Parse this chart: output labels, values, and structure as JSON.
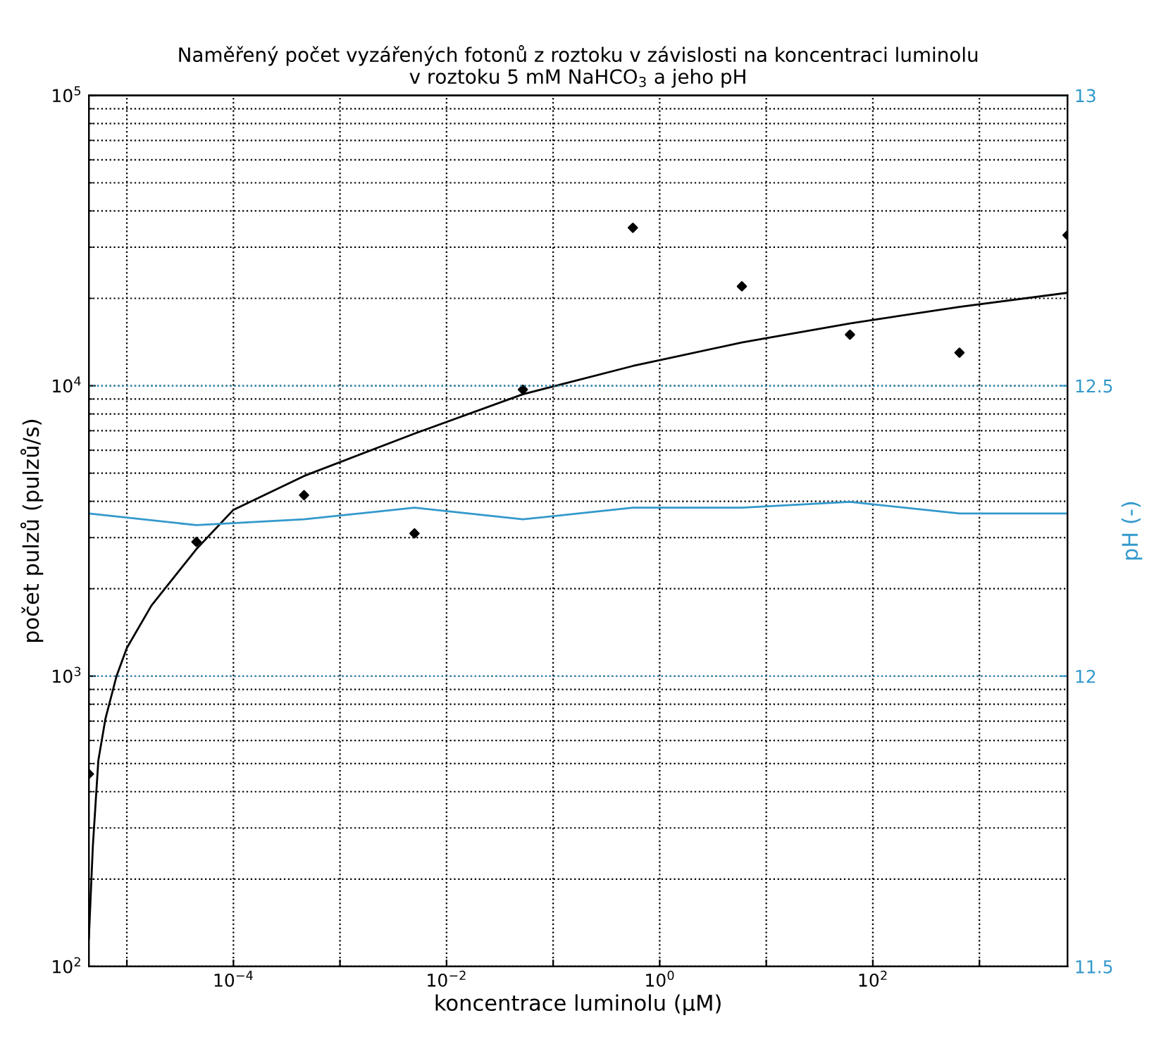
{
  "chart_data": {
    "type": "scatter",
    "title": "Naměřený počet vyzářených fotonů z roztoku v závislosti na koncentraci luminolu\nv roztoku 5 mM NaHCO$_{3}$ a jeho pH",
    "xlabel": "koncentrace luminolu (µM)",
    "ylabel": "počet pulzů (pulzů/s)",
    "y2label": "pH (-)",
    "log": "xy",
    "grid": true,
    "legend": false,
    "xlim": [
      4.4e-06,
      6700
    ],
    "xticks": [
      {
        "value": 1e-05,
        "label": null
      },
      {
        "value": 0.0001,
        "label": "10$^{−4}$"
      },
      {
        "value": 0.001,
        "label": null
      },
      {
        "value": 0.01,
        "label": "10$^{−2}$"
      },
      {
        "value": 0.1,
        "label": null
      },
      {
        "value": 1,
        "label": "10$^{0}$"
      },
      {
        "value": 10,
        "label": null
      },
      {
        "value": 100,
        "label": "10$^{2}$"
      },
      {
        "value": 1000,
        "label": null
      }
    ],
    "ylim": [
      100,
      100000
    ],
    "yticks": [
      {
        "value": 100,
        "label": "10$^{2}$"
      },
      {
        "value": 1000,
        "label": "10$^{3}$"
      },
      {
        "value": 10000,
        "label": "10$^{4}$"
      },
      {
        "value": 100000,
        "label": "10$^{5}$"
      }
    ],
    "y2lim": [
      11.5,
      13
    ],
    "y2ticks": [
      11.5,
      12,
      12.5,
      13
    ],
    "series": [
      {
        "marker": "diamond",
        "color": "#000000",
        "x": [
          4.4e-06,
          4.5e-05,
          0.00046,
          0.005,
          0.052,
          0.56,
          5.9,
          61,
          650,
          6700
        ],
        "values": [
          460,
          2900,
          4200,
          3100,
          9700,
          35000,
          22000,
          15000,
          13000,
          33000
        ]
      },
      {
        "type": "line",
        "marker": "none",
        "line_style": "solid",
        "color": "#000000",
        "x": [
          4.4e-06,
          4.8e-06,
          5.4e-06,
          6.3e-06,
          8e-06,
          1e-05,
          1.7e-05,
          4.5e-05,
          0.0001,
          0.00046,
          0.005,
          0.052,
          0.56,
          5.9,
          61,
          650,
          6700
        ],
        "values": [
          125,
          261,
          512,
          714,
          1000,
          1250,
          1750,
          2740,
          3740,
          4890,
          6840,
          9350,
          11700,
          14100,
          16400,
          18700,
          20900
        ]
      },
      {
        "type": "line",
        "axis": "y2",
        "marker": "none",
        "line_style": "solid",
        "color": "#3399cc",
        "x": [
          4.4e-06,
          4.5e-05,
          0.00046,
          0.005,
          0.052,
          0.56,
          5.9,
          61,
          650,
          6700
        ],
        "values": [
          12.28,
          12.26,
          12.27,
          12.29,
          12.27,
          12.29,
          12.29,
          12.3,
          12.28,
          12.28
        ]
      }
    ]
  }
}
